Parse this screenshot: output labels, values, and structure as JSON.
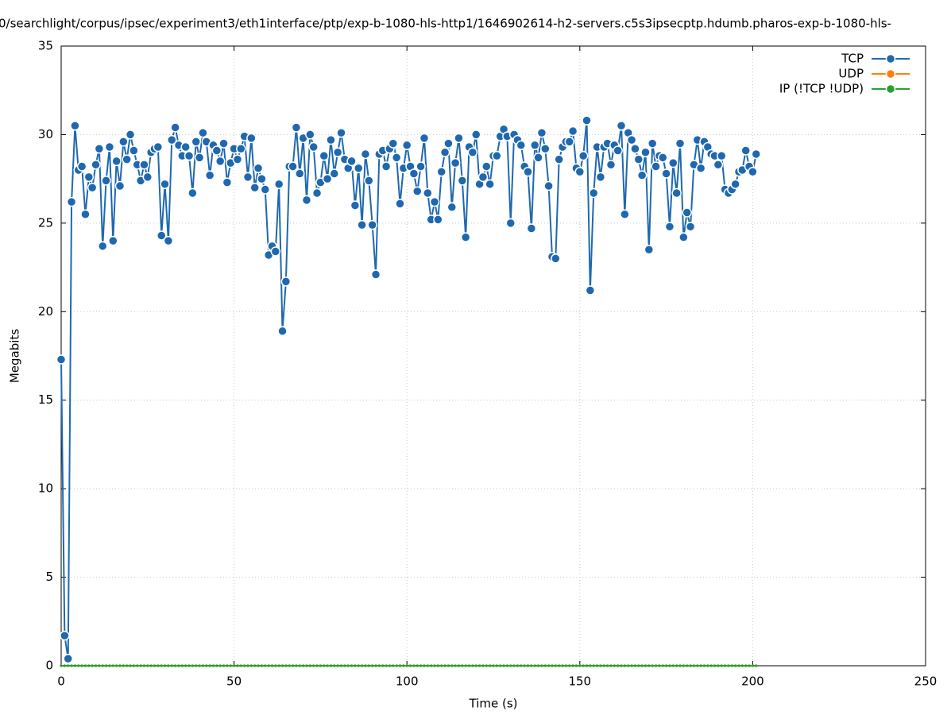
{
  "chart_data": {
    "type": "line",
    "title": "0/searchlight/corpus/ipsec/experiment3/eth1interface/ptp/exp-b-1080-hls-http1/1646902614-h2-servers.c5s3ipsecptp.hdumb.pharos-exp-b-1080-hls-",
    "x_label": "Time (s)",
    "y_label": "Megabits",
    "xlim": [
      0,
      250
    ],
    "ylim": [
      0,
      35
    ],
    "xticks": [
      0,
      50,
      100,
      150,
      200,
      250
    ],
    "yticks": [
      0,
      5,
      10,
      15,
      20,
      25,
      30,
      35
    ],
    "grid": true,
    "legend": "top-right",
    "x": [
      0,
      1,
      2,
      3,
      4,
      5,
      6,
      7,
      8,
      9,
      10,
      11,
      12,
      13,
      14,
      15,
      16,
      17,
      18,
      19,
      20,
      21,
      22,
      23,
      24,
      25,
      26,
      27,
      28,
      29,
      30,
      31,
      32,
      33,
      34,
      35,
      36,
      37,
      38,
      39,
      40,
      41,
      42,
      43,
      44,
      45,
      46,
      47,
      48,
      49,
      50,
      51,
      52,
      53,
      54,
      55,
      56,
      57,
      58,
      59,
      60,
      61,
      62,
      63,
      64,
      65,
      66,
      67,
      68,
      69,
      70,
      71,
      72,
      73,
      74,
      75,
      76,
      77,
      78,
      79,
      80,
      81,
      82,
      83,
      84,
      85,
      86,
      87,
      88,
      89,
      90,
      91,
      92,
      93,
      94,
      95,
      96,
      97,
      98,
      99,
      100,
      101,
      102,
      103,
      104,
      105,
      106,
      107,
      108,
      109,
      110,
      111,
      112,
      113,
      114,
      115,
      116,
      117,
      118,
      119,
      120,
      121,
      122,
      123,
      124,
      125,
      126,
      127,
      128,
      129,
      130,
      131,
      132,
      133,
      134,
      135,
      136,
      137,
      138,
      139,
      140,
      141,
      142,
      143,
      144,
      145,
      146,
      147,
      148,
      149,
      150,
      151,
      152,
      153,
      154,
      155,
      156,
      157,
      158,
      159,
      160,
      161,
      162,
      163,
      164,
      165,
      166,
      167,
      168,
      169,
      170,
      171,
      172,
      173,
      174,
      175,
      176,
      177,
      178,
      179,
      180,
      181,
      182,
      183,
      184,
      185,
      186,
      187,
      188,
      189,
      190,
      191,
      192,
      193,
      194,
      195,
      196,
      197,
      198,
      199,
      200,
      201
    ],
    "series": [
      {
        "name": "TCP",
        "color": "#1f68b0",
        "values": [
          17.3,
          1.7,
          0.4,
          26.2,
          30.5,
          28,
          28.2,
          25.5,
          27.6,
          27,
          28.3,
          29.2,
          23.7,
          27.4,
          29.3,
          24,
          28.5,
          27.1,
          29.6,
          28.6,
          30,
          29.1,
          28.3,
          27.4,
          28.3,
          27.6,
          29,
          29.2,
          29.3,
          24.3,
          27.2,
          24,
          29.7,
          30.4,
          29.4,
          28.8,
          29.3,
          28.8,
          26.7,
          29.6,
          28.7,
          30.1,
          29.6,
          27.7,
          29.4,
          29.1,
          28.5,
          29.5,
          27.3,
          28.4,
          29.2,
          28.6,
          29.2,
          29.9,
          27.6,
          29.8,
          27,
          28.1,
          27.5,
          26.9,
          23.2,
          23.7,
          23.4,
          27.2,
          18.9,
          21.7,
          28.2,
          28.2,
          30.4,
          27.8,
          29.8,
          26.3,
          30,
          29.3,
          26.7,
          27.3,
          28.8,
          27.5,
          29.7,
          27.8,
          29,
          30.1,
          28.6,
          28.1,
          28.5,
          26,
          28.1,
          24.9,
          28.9,
          27.4,
          24.9,
          22.1,
          28.9,
          29.1,
          28.2,
          29.2,
          29.5,
          28.7,
          26.1,
          28.1,
          29.4,
          28.2,
          27.8,
          26.8,
          28.2,
          29.8,
          26.7,
          25.2,
          26.2,
          25.2,
          27.9,
          29,
          29.5,
          25.9,
          28.4,
          29.8,
          27.4,
          24.2,
          29.3,
          29,
          30,
          27.2,
          27.6,
          28.2,
          27.2,
          28.8,
          28.8,
          29.9,
          30.3,
          29.9,
          25,
          30,
          29.7,
          29.4,
          28.2,
          27.9,
          24.7,
          29.4,
          28.7,
          30.1,
          29.2,
          27.1,
          23.1,
          23,
          28.6,
          29.3,
          29.6,
          29.6,
          30.2,
          28.1,
          27.9,
          28.8,
          30.8,
          21.2,
          26.7,
          29.3,
          27.6,
          29.3,
          29.5,
          28.3,
          29.4,
          29.1,
          30.5,
          25.5,
          30.1,
          29.7,
          29.2,
          28.6,
          27.7,
          29,
          23.5,
          29.5,
          28.2,
          28.8,
          28.7,
          27.8,
          24.8,
          28.4,
          26.7,
          29.5,
          24.2,
          25.6,
          24.8,
          28.3,
          29.7,
          28.1,
          29.6,
          29.3,
          28.9,
          28.8,
          28.3,
          28.8,
          26.9,
          26.7,
          26.9,
          27.2,
          27.9,
          28,
          29.1,
          28.2,
          27.9,
          28.9
        ]
      },
      {
        "name": "UDP",
        "color": "#ff7f0e",
        "values": [
          0,
          0,
          0,
          0,
          0,
          0,
          0,
          0,
          0,
          0,
          0,
          0,
          0,
          0,
          0,
          0,
          0,
          0,
          0,
          0,
          0,
          0,
          0,
          0,
          0,
          0,
          0,
          0,
          0,
          0,
          0,
          0,
          0,
          0,
          0,
          0,
          0,
          0,
          0,
          0,
          0,
          0,
          0,
          0,
          0,
          0,
          0,
          0,
          0,
          0,
          0,
          0,
          0,
          0,
          0,
          0,
          0,
          0,
          0,
          0,
          0,
          0,
          0,
          0,
          0,
          0,
          0,
          0,
          0,
          0,
          0,
          0,
          0,
          0,
          0,
          0,
          0,
          0,
          0,
          0,
          0,
          0,
          0,
          0,
          0,
          0,
          0,
          0,
          0,
          0,
          0,
          0,
          0,
          0,
          0,
          0,
          0,
          0,
          0,
          0,
          0,
          0,
          0,
          0,
          0,
          0,
          0,
          0,
          0,
          0,
          0,
          0,
          0,
          0,
          0,
          0,
          0,
          0,
          0,
          0,
          0,
          0,
          0,
          0,
          0,
          0,
          0,
          0,
          0,
          0,
          0,
          0,
          0,
          0,
          0,
          0,
          0,
          0,
          0,
          0,
          0,
          0,
          0,
          0,
          0,
          0,
          0,
          0,
          0,
          0,
          0,
          0,
          0,
          0,
          0,
          0,
          0,
          0,
          0,
          0,
          0,
          0,
          0,
          0,
          0,
          0,
          0,
          0,
          0,
          0,
          0,
          0,
          0,
          0,
          0,
          0,
          0,
          0,
          0,
          0,
          0,
          0,
          0,
          0,
          0,
          0,
          0,
          0,
          0,
          0,
          0,
          0,
          0,
          0,
          0,
          0,
          0,
          0,
          0,
          0,
          0,
          0
        ]
      },
      {
        "name": "IP (!TCP  !UDP)",
        "color": "#2ca02c",
        "values": [
          0,
          0,
          0,
          0,
          0,
          0,
          0,
          0,
          0,
          0,
          0,
          0,
          0,
          0,
          0,
          0,
          0,
          0,
          0,
          0,
          0,
          0,
          0,
          0,
          0,
          0,
          0,
          0,
          0,
          0,
          0,
          0,
          0,
          0,
          0,
          0,
          0,
          0,
          0,
          0,
          0,
          0,
          0,
          0,
          0,
          0,
          0,
          0,
          0,
          0,
          0,
          0,
          0,
          0,
          0,
          0,
          0,
          0,
          0,
          0,
          0,
          0,
          0,
          0,
          0,
          0,
          0,
          0,
          0,
          0,
          0,
          0,
          0,
          0,
          0,
          0,
          0,
          0,
          0,
          0,
          0,
          0,
          0,
          0,
          0,
          0,
          0,
          0,
          0,
          0,
          0,
          0,
          0,
          0,
          0,
          0,
          0,
          0,
          0,
          0,
          0,
          0,
          0,
          0,
          0,
          0,
          0,
          0,
          0,
          0,
          0,
          0,
          0,
          0,
          0,
          0,
          0,
          0,
          0,
          0,
          0,
          0,
          0,
          0,
          0,
          0,
          0,
          0,
          0,
          0,
          0,
          0,
          0,
          0,
          0,
          0,
          0,
          0,
          0,
          0,
          0,
          0,
          0,
          0,
          0,
          0,
          0,
          0,
          0,
          0,
          0,
          0,
          0,
          0,
          0,
          0,
          0,
          0,
          0,
          0,
          0,
          0,
          0,
          0,
          0,
          0,
          0,
          0,
          0,
          0,
          0,
          0,
          0,
          0,
          0,
          0,
          0,
          0,
          0,
          0,
          0,
          0,
          0,
          0,
          0,
          0,
          0,
          0,
          0,
          0,
          0,
          0,
          0,
          0,
          0,
          0,
          0,
          0,
          0,
          0,
          0,
          0
        ]
      }
    ]
  }
}
